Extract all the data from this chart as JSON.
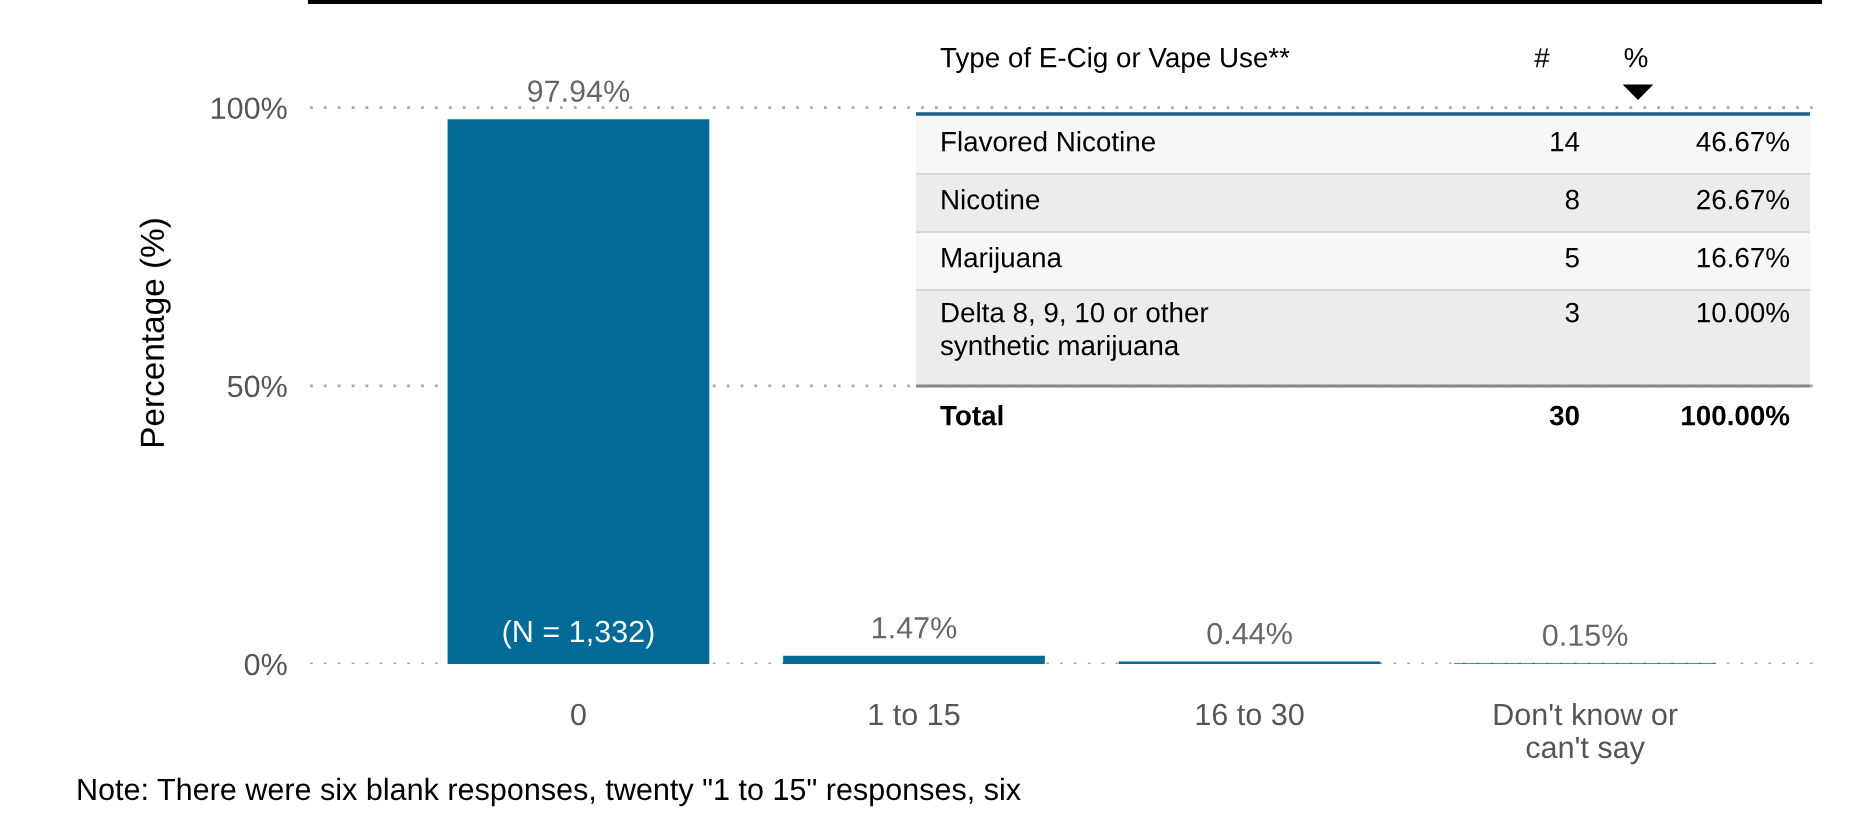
{
  "chart_data": [
    {
      "type": "bar",
      "ylabel": "Percentage (%)",
      "categories": [
        "0",
        "1 to 15",
        "16 to 30",
        "Don't know or\ncan't say"
      ],
      "values": [
        97.94,
        1.47,
        0.44,
        0.15
      ],
      "value_labels": [
        "97.94%",
        "1.47%",
        "0.44%",
        "0.15%"
      ],
      "color": "#016a96",
      "ylim": [
        0,
        119
      ],
      "yticks": [
        {
          "value": 0,
          "label": "0%"
        },
        {
          "value": 50,
          "label": "50%"
        },
        {
          "value": 100,
          "label": "100%"
        }
      ],
      "grid": "y",
      "annotations": [
        "(N = 1,332)",
        "Note: There were six blank responses, twenty \"1 to 15\" responses, six"
      ]
    },
    {
      "type": "other",
      "annotations": [
        "Type of E-Cig or Vape Use**",
        "#",
        "%",
        "Flavored Nicotine",
        "14",
        "46.67%",
        "Nicotine",
        "8",
        "26.67%",
        "Marijuana",
        "5",
        "16.67%",
        "Delta 8, 9, 10 or other\nsynthetic marijuana",
        "3",
        "10.00%",
        "Total",
        "30",
        "100.00%"
      ]
    }
  ]
}
